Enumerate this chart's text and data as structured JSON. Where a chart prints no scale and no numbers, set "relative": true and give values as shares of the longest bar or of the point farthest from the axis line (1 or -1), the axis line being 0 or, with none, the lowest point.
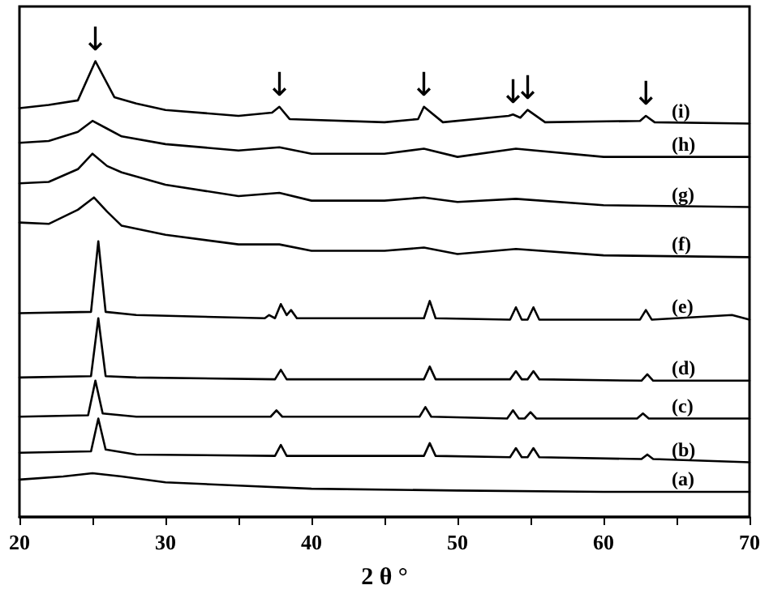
{
  "chart_data": {
    "type": "line",
    "relative": true,
    "xlabel": "2 θ °",
    "xlim": [
      20,
      70
    ],
    "xticks": [
      20,
      30,
      40,
      50,
      60,
      70
    ],
    "legend": false,
    "grid": false,
    "marker": "none",
    "line_style": "solid",
    "annotations": [
      {
        "text": "↓",
        "x": 25.2,
        "y": 1
      },
      {
        "text": "↓",
        "x": 37.8,
        "y": 0.9
      },
      {
        "text": "↓",
        "x": 47.7,
        "y": 0.9
      },
      {
        "text": "↓",
        "x": 53.8,
        "y": 0.883
      },
      {
        "text": "↓",
        "x": 54.8,
        "y": 0.893
      },
      {
        "text": "↓",
        "x": 62.9,
        "y": 0.88
      }
    ],
    "series": [
      {
        "name": "(a)",
        "color": "#000000",
        "x": [
          20,
          23,
          25,
          27,
          30,
          35,
          40,
          50,
          60,
          70
        ],
        "values": [
          0.082,
          0.089,
          0.096,
          0.089,
          0.076,
          0.069,
          0.062,
          0.058,
          0.055,
          0.055
        ]
      },
      {
        "name": "(b)",
        "color": "#000000",
        "x": [
          20,
          24.9,
          25.4,
          25.9,
          28,
          37.5,
          37.9,
          38.3,
          47.7,
          48.1,
          48.5,
          53.6,
          54,
          54.4,
          54.8,
          55.2,
          55.6,
          62.6,
          63,
          63.4,
          70
        ],
        "values": [
          0.141,
          0.144,
          0.216,
          0.148,
          0.137,
          0.134,
          0.158,
          0.134,
          0.134,
          0.162,
          0.134,
          0.131,
          0.151,
          0.131,
          0.131,
          0.151,
          0.131,
          0.127,
          0.137,
          0.127,
          0.12
        ]
      },
      {
        "name": "(c)",
        "color": "#000000",
        "x": [
          20,
          24.7,
          25.2,
          25.7,
          28,
          37.2,
          37.6,
          38,
          47.4,
          47.8,
          48.2,
          53.4,
          53.8,
          54.2,
          54.6,
          55,
          55.4,
          62.3,
          62.7,
          63.1,
          70
        ],
        "values": [
          0.22,
          0.223,
          0.299,
          0.227,
          0.22,
          0.22,
          0.234,
          0.22,
          0.22,
          0.241,
          0.22,
          0.216,
          0.234,
          0.216,
          0.216,
          0.23,
          0.216,
          0.216,
          0.227,
          0.216,
          0.216
        ]
      },
      {
        "name": "(d)",
        "color": "#000000",
        "x": [
          20,
          24.9,
          25.4,
          25.9,
          28,
          37.5,
          37.9,
          38.3,
          47.7,
          48.1,
          48.5,
          53.6,
          54,
          54.4,
          54.8,
          55.2,
          55.6,
          62.6,
          63,
          63.4,
          70
        ],
        "values": [
          0.306,
          0.309,
          0.436,
          0.309,
          0.306,
          0.302,
          0.323,
          0.302,
          0.302,
          0.33,
          0.302,
          0.302,
          0.32,
          0.302,
          0.302,
          0.32,
          0.302,
          0.299,
          0.313,
          0.299,
          0.299
        ]
      },
      {
        "name": "(e)",
        "color": "#000000",
        "x": [
          20,
          24.9,
          25.4,
          25.9,
          28,
          36.8,
          37.1,
          37.5,
          37.9,
          38.3,
          38.6,
          39,
          47.7,
          48.1,
          48.5,
          53.6,
          54,
          54.4,
          54.8,
          55.2,
          55.6,
          62.5,
          62.9,
          63.3,
          68.8,
          70
        ],
        "values": [
          0.447,
          0.45,
          0.605,
          0.45,
          0.443,
          0.436,
          0.443,
          0.436,
          0.467,
          0.443,
          0.454,
          0.436,
          0.436,
          0.474,
          0.436,
          0.433,
          0.46,
          0.433,
          0.433,
          0.46,
          0.433,
          0.433,
          0.454,
          0.433,
          0.443,
          0.433
        ]
      },
      {
        "name": "(f)",
        "color": "#000000",
        "x": [
          20,
          22,
          24,
          25.1,
          26,
          27,
          30,
          35,
          37.8,
          40,
          45,
          47.7,
          50,
          54,
          60,
          70
        ],
        "values": [
          0.646,
          0.643,
          0.674,
          0.701,
          0.67,
          0.639,
          0.619,
          0.598,
          0.598,
          0.584,
          0.584,
          0.591,
          0.577,
          0.588,
          0.574,
          0.57
        ]
      },
      {
        "name": "(g)",
        "color": "#000000",
        "x": [
          20,
          22,
          24,
          25,
          26,
          27,
          30,
          35,
          37.8,
          40,
          45,
          47.7,
          50,
          54,
          60,
          70
        ],
        "values": [
          0.732,
          0.735,
          0.763,
          0.797,
          0.77,
          0.756,
          0.729,
          0.704,
          0.711,
          0.694,
          0.694,
          0.701,
          0.691,
          0.698,
          0.684,
          0.68
        ]
      },
      {
        "name": "(h)",
        "color": "#000000",
        "x": [
          20,
          22,
          24,
          25,
          26,
          27,
          30,
          35,
          37.8,
          40,
          45,
          47.7,
          50,
          54,
          60,
          70
        ],
        "values": [
          0.821,
          0.825,
          0.845,
          0.869,
          0.852,
          0.835,
          0.818,
          0.804,
          0.811,
          0.797,
          0.797,
          0.808,
          0.79,
          0.808,
          0.79,
          0.79
        ]
      },
      {
        "name": "(i)",
        "color": "#000000",
        "x": [
          20,
          22,
          24,
          25.2,
          26.5,
          28,
          30,
          35,
          37.3,
          37.8,
          38.5,
          45,
          47.3,
          47.7,
          49,
          53.5,
          53.8,
          54.3,
          54.8,
          56,
          62.5,
          62.9,
          63.5,
          70
        ],
        "values": [
          0.897,
          0.904,
          0.914,
          1,
          0.921,
          0.907,
          0.893,
          0.88,
          0.887,
          0.9,
          0.873,
          0.866,
          0.873,
          0.9,
          0.866,
          0.88,
          0.883,
          0.876,
          0.893,
          0.866,
          0.869,
          0.88,
          0.866,
          0.863
        ]
      }
    ]
  }
}
